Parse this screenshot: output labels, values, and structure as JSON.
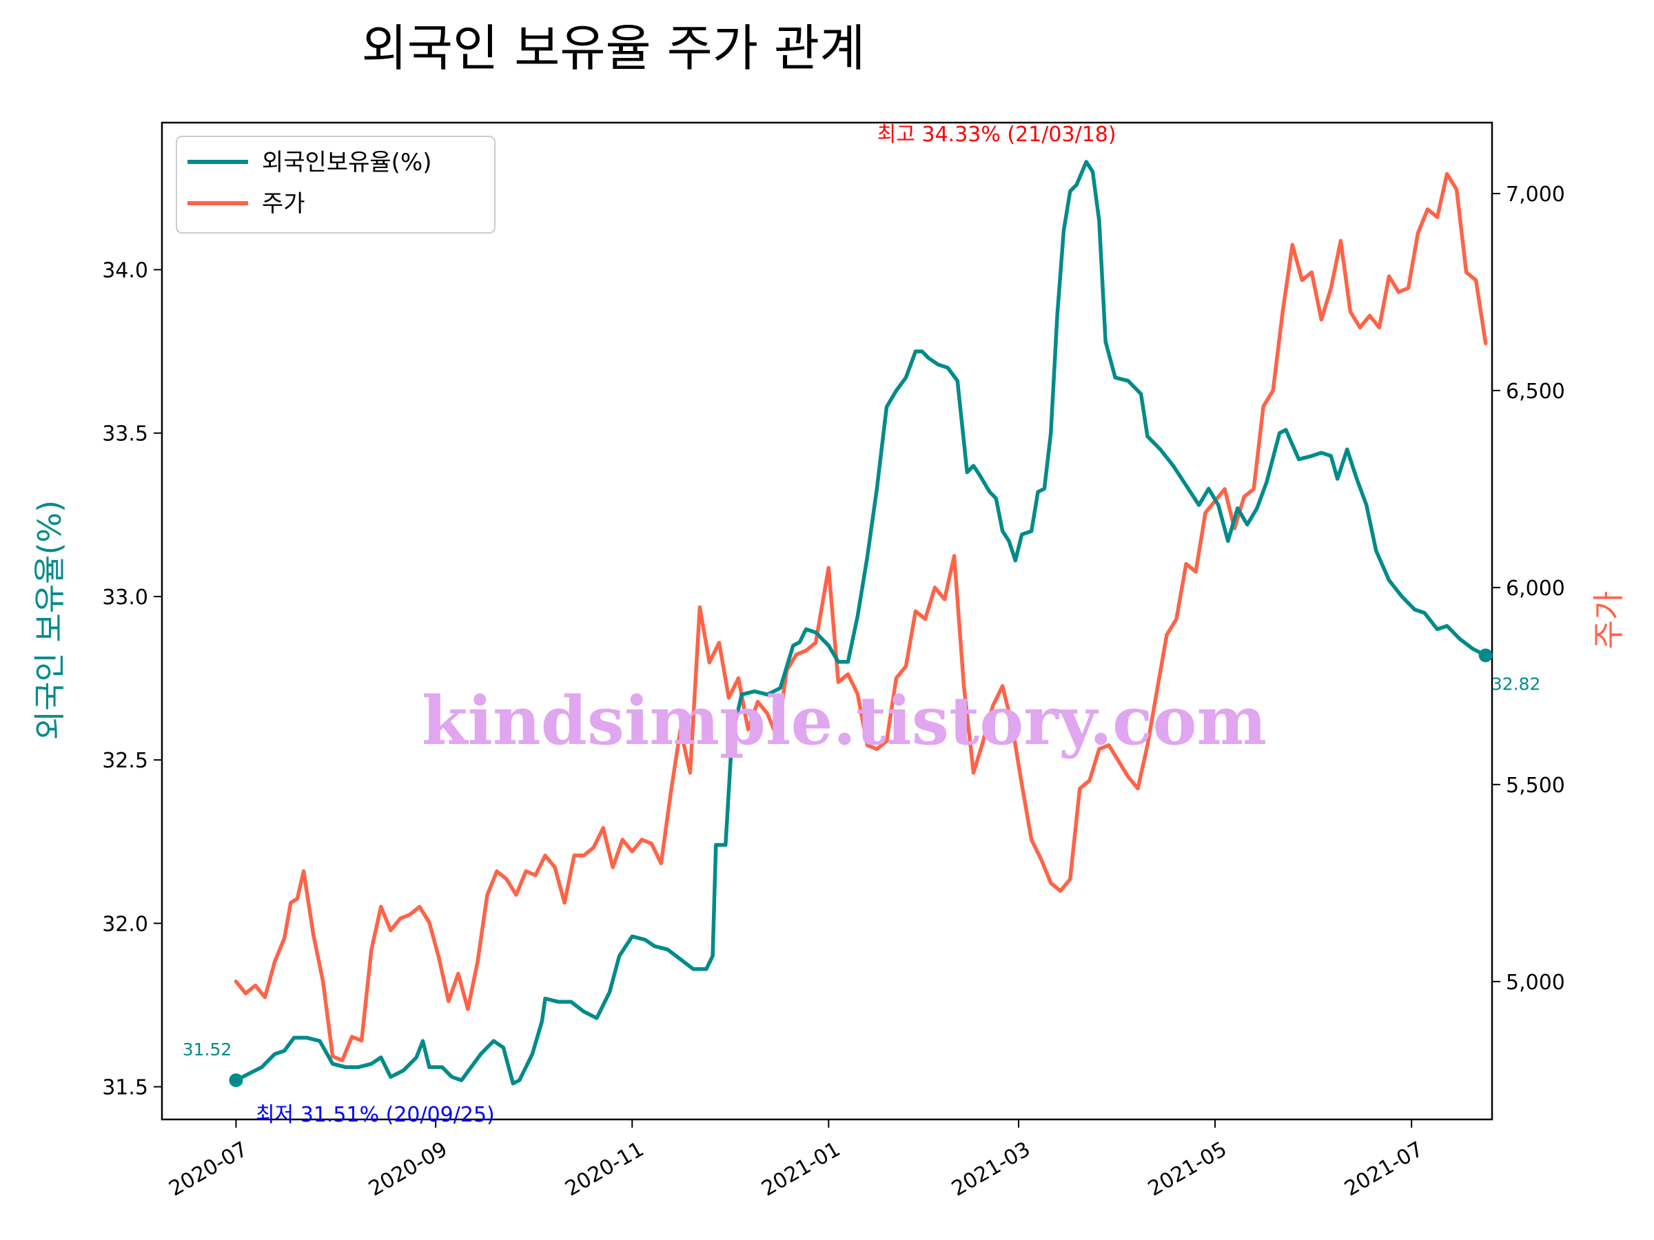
{
  "chart_data": {
    "type": "line",
    "title": "외국인 보유율 주가 관계",
    "xlabel": "",
    "ylabel_left": "외국인 보유율(%)",
    "ylabel_right": "주가",
    "x_range": [
      "2020-06-08",
      "2021-07-26"
    ],
    "ylim_left": [
      31.4,
      34.45
    ],
    "ylim_right": [
      4650,
      7180
    ],
    "x_ticks": [
      "2020-07",
      "2020-09",
      "2020-11",
      "2021-01",
      "2021-03",
      "2021-05",
      "2021-07"
    ],
    "y_ticks_left": [
      "31.5",
      "32.0",
      "32.5",
      "33.0",
      "33.5",
      "34.0"
    ],
    "y_ticks_right": [
      "5,000",
      "5,500",
      "6,000",
      "6,500",
      "7,000"
    ],
    "grid": false,
    "legend_position": "top-left",
    "series": [
      {
        "name": "외국인보유율(%)",
        "axis": "left",
        "color": "#008b8b",
        "points": [
          [
            "2020-07-01",
            31.52
          ],
          [
            "2020-07-05",
            31.54
          ],
          [
            "2020-07-09",
            31.56
          ],
          [
            "2020-07-13",
            31.6
          ],
          [
            "2020-07-16",
            31.61
          ],
          [
            "2020-07-19",
            31.65
          ],
          [
            "2020-07-23",
            31.65
          ],
          [
            "2020-07-27",
            31.64
          ],
          [
            "2020-07-31",
            31.57
          ],
          [
            "2020-08-04",
            31.56
          ],
          [
            "2020-08-08",
            31.56
          ],
          [
            "2020-08-12",
            31.57
          ],
          [
            "2020-08-15",
            31.59
          ],
          [
            "2020-08-18",
            31.53
          ],
          [
            "2020-08-22",
            31.55
          ],
          [
            "2020-08-26",
            31.59
          ],
          [
            "2020-08-28",
            31.64
          ],
          [
            "2020-08-30",
            31.56
          ],
          [
            "2020-09-03",
            31.56
          ],
          [
            "2020-09-06",
            31.53
          ],
          [
            "2020-09-09",
            31.52
          ],
          [
            "2020-09-12",
            31.56
          ],
          [
            "2020-09-15",
            31.6
          ],
          [
            "2020-09-19",
            31.64
          ],
          [
            "2020-09-22",
            31.62
          ],
          [
            "2020-09-25",
            31.51
          ],
          [
            "2020-09-27",
            31.52
          ],
          [
            "2020-10-01",
            31.6
          ],
          [
            "2020-10-04",
            31.7
          ],
          [
            "2020-10-05",
            31.77
          ],
          [
            "2020-10-09",
            31.76
          ],
          [
            "2020-10-13",
            31.76
          ],
          [
            "2020-10-17",
            31.73
          ],
          [
            "2020-10-21",
            31.71
          ],
          [
            "2020-10-25",
            31.79
          ],
          [
            "2020-10-28",
            31.9
          ],
          [
            "2020-11-01",
            31.96
          ],
          [
            "2020-11-05",
            31.95
          ],
          [
            "2020-11-08",
            31.93
          ],
          [
            "2020-11-12",
            31.92
          ],
          [
            "2020-11-16",
            31.89
          ],
          [
            "2020-11-20",
            31.86
          ],
          [
            "2020-11-24",
            31.86
          ],
          [
            "2020-11-26",
            31.9
          ],
          [
            "2020-11-27",
            32.24
          ],
          [
            "2020-11-30",
            32.24
          ],
          [
            "2020-12-02",
            32.57
          ],
          [
            "2020-12-05",
            32.7
          ],
          [
            "2020-12-09",
            32.71
          ],
          [
            "2020-12-13",
            32.7
          ],
          [
            "2020-12-17",
            32.72
          ],
          [
            "2020-12-21",
            32.85
          ],
          [
            "2020-12-23",
            32.86
          ],
          [
            "2020-12-25",
            32.9
          ],
          [
            "2020-12-28",
            32.89
          ],
          [
            "2021-01-01",
            32.85
          ],
          [
            "2021-01-04",
            32.8
          ],
          [
            "2021-01-07",
            32.8
          ],
          [
            "2021-01-10",
            32.94
          ],
          [
            "2021-01-13",
            33.12
          ],
          [
            "2021-01-16",
            33.33
          ],
          [
            "2021-01-19",
            33.58
          ],
          [
            "2021-01-22",
            33.63
          ],
          [
            "2021-01-25",
            33.67
          ],
          [
            "2021-01-28",
            33.75
          ],
          [
            "2021-01-30",
            33.75
          ],
          [
            "2021-02-01",
            33.73
          ],
          [
            "2021-02-04",
            33.71
          ],
          [
            "2021-02-07",
            33.7
          ],
          [
            "2021-02-10",
            33.66
          ],
          [
            "2021-02-13",
            33.38
          ],
          [
            "2021-02-15",
            33.4
          ],
          [
            "2021-02-17",
            33.37
          ],
          [
            "2021-02-20",
            33.32
          ],
          [
            "2021-02-22",
            33.3
          ],
          [
            "2021-02-24",
            33.2
          ],
          [
            "2021-02-26",
            33.17
          ],
          [
            "2021-02-28",
            33.11
          ],
          [
            "2021-03-02",
            33.19
          ],
          [
            "2021-03-05",
            33.2
          ],
          [
            "2021-03-07",
            33.32
          ],
          [
            "2021-03-09",
            33.33
          ],
          [
            "2021-03-11",
            33.5
          ],
          [
            "2021-03-13",
            33.86
          ],
          [
            "2021-03-15",
            34.12
          ],
          [
            "2021-03-17",
            34.24
          ],
          [
            "2021-03-19",
            34.26
          ],
          [
            "2021-03-22",
            34.33
          ],
          [
            "2021-03-24",
            34.3
          ],
          [
            "2021-03-26",
            34.15
          ],
          [
            "2021-03-28",
            33.78
          ],
          [
            "2021-03-31",
            33.67
          ],
          [
            "2021-04-04",
            33.66
          ],
          [
            "2021-04-08",
            33.62
          ],
          [
            "2021-04-10",
            33.49
          ],
          [
            "2021-04-14",
            33.45
          ],
          [
            "2021-04-18",
            33.4
          ],
          [
            "2021-04-22",
            33.34
          ],
          [
            "2021-04-26",
            33.28
          ],
          [
            "2021-04-29",
            33.33
          ],
          [
            "2021-05-02",
            33.28
          ],
          [
            "2021-05-05",
            33.17
          ],
          [
            "2021-05-08",
            33.27
          ],
          [
            "2021-05-11",
            33.22
          ],
          [
            "2021-05-14",
            33.27
          ],
          [
            "2021-05-17",
            33.35
          ],
          [
            "2021-05-21",
            33.5
          ],
          [
            "2021-05-23",
            33.51
          ],
          [
            "2021-05-27",
            33.42
          ],
          [
            "2021-05-31",
            33.43
          ],
          [
            "2021-06-03",
            33.44
          ],
          [
            "2021-06-06",
            33.43
          ],
          [
            "2021-06-08",
            33.36
          ],
          [
            "2021-06-11",
            33.45
          ],
          [
            "2021-06-14",
            33.36
          ],
          [
            "2021-06-17",
            33.28
          ],
          [
            "2021-06-20",
            33.14
          ],
          [
            "2021-06-24",
            33.05
          ],
          [
            "2021-06-28",
            33.0
          ],
          [
            "2021-07-02",
            32.96
          ],
          [
            "2021-07-05",
            32.95
          ],
          [
            "2021-07-09",
            32.9
          ],
          [
            "2021-07-12",
            32.91
          ],
          [
            "2021-07-16",
            32.87
          ],
          [
            "2021-07-20",
            32.84
          ],
          [
            "2021-07-24",
            32.82
          ]
        ]
      },
      {
        "name": "주가",
        "axis": "right",
        "color": "#ff6347",
        "points": [
          [
            "2020-07-01",
            5000
          ],
          [
            "2020-07-04",
            4970
          ],
          [
            "2020-07-07",
            4990
          ],
          [
            "2020-07-10",
            4960
          ],
          [
            "2020-07-13",
            5050
          ],
          [
            "2020-07-16",
            5110
          ],
          [
            "2020-07-18",
            5200
          ],
          [
            "2020-07-20",
            5210
          ],
          [
            "2020-07-22",
            5280
          ],
          [
            "2020-07-25",
            5120
          ],
          [
            "2020-07-28",
            5000
          ],
          [
            "2020-07-31",
            4810
          ],
          [
            "2020-08-03",
            4800
          ],
          [
            "2020-08-06",
            4860
          ],
          [
            "2020-08-09",
            4850
          ],
          [
            "2020-08-12",
            5080
          ],
          [
            "2020-08-15",
            5190
          ],
          [
            "2020-08-18",
            5130
          ],
          [
            "2020-08-21",
            5160
          ],
          [
            "2020-08-24",
            5170
          ],
          [
            "2020-08-27",
            5190
          ],
          [
            "2020-08-30",
            5150
          ],
          [
            "2020-09-02",
            5060
          ],
          [
            "2020-09-05",
            4950
          ],
          [
            "2020-09-08",
            5020
          ],
          [
            "2020-09-11",
            4930
          ],
          [
            "2020-09-14",
            5050
          ],
          [
            "2020-09-17",
            5220
          ],
          [
            "2020-09-20",
            5280
          ],
          [
            "2020-09-23",
            5260
          ],
          [
            "2020-09-26",
            5220
          ],
          [
            "2020-09-29",
            5280
          ],
          [
            "2020-10-02",
            5270
          ],
          [
            "2020-10-05",
            5320
          ],
          [
            "2020-10-08",
            5290
          ],
          [
            "2020-10-11",
            5200
          ],
          [
            "2020-10-14",
            5320
          ],
          [
            "2020-10-17",
            5320
          ],
          [
            "2020-10-20",
            5340
          ],
          [
            "2020-10-23",
            5390
          ],
          [
            "2020-10-26",
            5290
          ],
          [
            "2020-10-29",
            5360
          ],
          [
            "2020-11-01",
            5330
          ],
          [
            "2020-11-04",
            5360
          ],
          [
            "2020-11-07",
            5350
          ],
          [
            "2020-11-10",
            5300
          ],
          [
            "2020-11-13",
            5480
          ],
          [
            "2020-11-16",
            5640
          ],
          [
            "2020-11-19",
            5530
          ],
          [
            "2020-11-22",
            5950
          ],
          [
            "2020-11-25",
            5810
          ],
          [
            "2020-11-28",
            5860
          ],
          [
            "2020-12-01",
            5720
          ],
          [
            "2020-12-04",
            5770
          ],
          [
            "2020-12-07",
            5640
          ],
          [
            "2020-12-10",
            5710
          ],
          [
            "2020-12-13",
            5680
          ],
          [
            "2020-12-16",
            5620
          ],
          [
            "2020-12-19",
            5790
          ],
          [
            "2020-12-22",
            5830
          ],
          [
            "2020-12-25",
            5840
          ],
          [
            "2020-12-28",
            5860
          ],
          [
            "2021-01-01",
            6050
          ],
          [
            "2021-01-04",
            5760
          ],
          [
            "2021-01-07",
            5780
          ],
          [
            "2021-01-10",
            5730
          ],
          [
            "2021-01-13",
            5600
          ],
          [
            "2021-01-16",
            5590
          ],
          [
            "2021-01-19",
            5610
          ],
          [
            "2021-01-22",
            5770
          ],
          [
            "2021-01-25",
            5800
          ],
          [
            "2021-01-28",
            5940
          ],
          [
            "2021-01-31",
            5920
          ],
          [
            "2021-02-03",
            6000
          ],
          [
            "2021-02-06",
            5970
          ],
          [
            "2021-02-09",
            6080
          ],
          [
            "2021-02-12",
            5750
          ],
          [
            "2021-02-15",
            5530
          ],
          [
            "2021-02-18",
            5610
          ],
          [
            "2021-02-21",
            5700
          ],
          [
            "2021-02-24",
            5750
          ],
          [
            "2021-02-27",
            5650
          ],
          [
            "2021-03-02",
            5500
          ],
          [
            "2021-03-05",
            5360
          ],
          [
            "2021-03-08",
            5310
          ],
          [
            "2021-03-11",
            5250
          ],
          [
            "2021-03-14",
            5230
          ],
          [
            "2021-03-17",
            5260
          ],
          [
            "2021-03-20",
            5490
          ],
          [
            "2021-03-23",
            5510
          ],
          [
            "2021-03-26",
            5590
          ],
          [
            "2021-03-29",
            5600
          ],
          [
            "2021-04-01",
            5560
          ],
          [
            "2021-04-04",
            5520
          ],
          [
            "2021-04-07",
            5490
          ],
          [
            "2021-04-10",
            5600
          ],
          [
            "2021-04-13",
            5740
          ],
          [
            "2021-04-16",
            5880
          ],
          [
            "2021-04-19",
            5920
          ],
          [
            "2021-04-22",
            6060
          ],
          [
            "2021-04-25",
            6040
          ],
          [
            "2021-04-28",
            6190
          ],
          [
            "2021-05-01",
            6220
          ],
          [
            "2021-05-04",
            6250
          ],
          [
            "2021-05-07",
            6150
          ],
          [
            "2021-05-10",
            6230
          ],
          [
            "2021-05-13",
            6250
          ],
          [
            "2021-05-16",
            6460
          ],
          [
            "2021-05-19",
            6500
          ],
          [
            "2021-05-22",
            6700
          ],
          [
            "2021-05-25",
            6870
          ],
          [
            "2021-05-28",
            6780
          ],
          [
            "2021-05-31",
            6800
          ],
          [
            "2021-06-03",
            6680
          ],
          [
            "2021-06-06",
            6760
          ],
          [
            "2021-06-09",
            6880
          ],
          [
            "2021-06-12",
            6700
          ],
          [
            "2021-06-15",
            6660
          ],
          [
            "2021-06-18",
            6690
          ],
          [
            "2021-06-21",
            6660
          ],
          [
            "2021-06-24",
            6790
          ],
          [
            "2021-06-27",
            6750
          ],
          [
            "2021-06-30",
            6760
          ],
          [
            "2021-07-03",
            6900
          ],
          [
            "2021-07-06",
            6960
          ],
          [
            "2021-07-09",
            6940
          ],
          [
            "2021-07-12",
            7050
          ],
          [
            "2021-07-15",
            7010
          ],
          [
            "2021-07-18",
            6800
          ],
          [
            "2021-07-21",
            6780
          ],
          [
            "2021-07-24",
            6620
          ]
        ]
      }
    ],
    "annotations": [
      {
        "id": "min",
        "text": "최저 31.51% (20/09/25)",
        "color": "#0000ff"
      },
      {
        "id": "max",
        "text": "최고 34.33% (21/03/18)",
        "color": "#ff0000"
      },
      {
        "id": "start",
        "text": "31.52",
        "color": "#008b8b"
      },
      {
        "id": "end",
        "text": "32.82",
        "color": "#008b8b"
      }
    ]
  },
  "watermark": "kindsimple.tistory.com"
}
